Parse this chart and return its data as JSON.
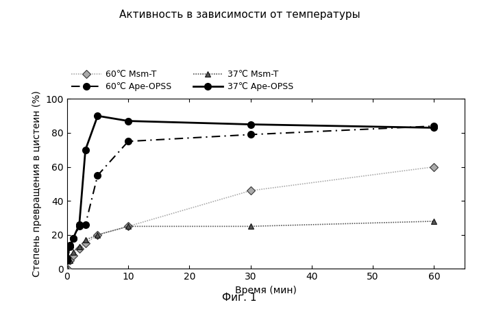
{
  "title": "Активность в зависимости от температуры",
  "xlabel": "Время (мин)",
  "ylabel": "Степень превращения в цистеин (%)",
  "caption": "Фиг. 1",
  "xlim": [
    0,
    65
  ],
  "ylim": [
    0,
    100
  ],
  "xticks": [
    0,
    10,
    20,
    30,
    40,
    50,
    60
  ],
  "yticks": [
    0,
    20,
    40,
    60,
    80,
    100
  ],
  "series": {
    "60C_MsmT": {
      "x": [
        0,
        0.5,
        1,
        2,
        3,
        5,
        10,
        30,
        60
      ],
      "y": [
        0,
        5,
        8,
        12,
        15,
        20,
        25,
        46,
        60
      ],
      "label": "60℃ Msm-T",
      "color": "#aaaaaa",
      "marker": "D",
      "markersize": 6,
      "linewidth": 1.2
    },
    "37C_MsmT": {
      "x": [
        0,
        0.5,
        1,
        2,
        3,
        5,
        10,
        30,
        60
      ],
      "y": [
        0,
        5,
        10,
        13,
        17,
        20,
        25,
        25,
        28
      ],
      "label": "37℃ Msm-T",
      "color": "#555555",
      "marker": "^",
      "markersize": 6,
      "linewidth": 1.2
    },
    "60C_ApeOPSS": {
      "x": [
        0,
        0.5,
        1,
        2,
        3,
        5,
        10,
        30,
        60
      ],
      "y": [
        5,
        13,
        18,
        25,
        26,
        55,
        75,
        79,
        84
      ],
      "label": "60℃ Ape-OPSS",
      "color": "#000000",
      "marker": "o",
      "markersize": 7,
      "linewidth": 1.5
    },
    "37C_ApeOPSS": {
      "x": [
        0,
        0.5,
        1,
        2,
        3,
        5,
        10,
        30,
        60
      ],
      "y": [
        6,
        14,
        18,
        26,
        70,
        90,
        87,
        85,
        83
      ],
      "label": "37℃ Ape-OPSS",
      "color": "#000000",
      "marker": "o",
      "markersize": 7,
      "linewidth": 2.0
    }
  }
}
